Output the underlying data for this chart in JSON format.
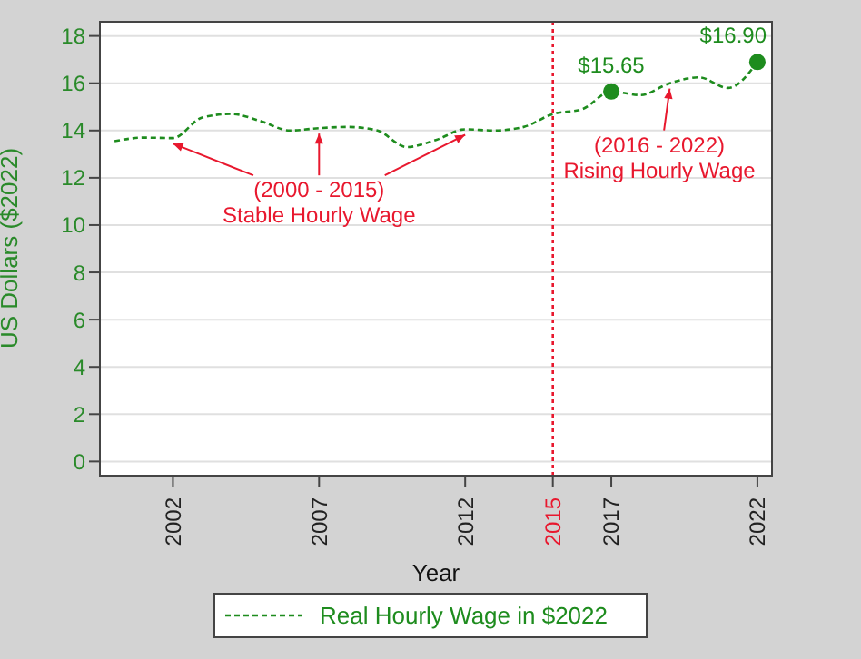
{
  "chart_data": {
    "type": "line",
    "xlabel": "Year",
    "ylabel": "US Dollars ($2022)",
    "xlim": [
      1999.5,
      2022.5
    ],
    "xticks": [
      2002,
      2007,
      2012,
      2015,
      2017,
      2022
    ],
    "ylim": [
      -0.6,
      18.6
    ],
    "yticks": [
      0,
      2,
      4,
      6,
      8,
      10,
      12,
      14,
      16,
      18
    ],
    "grid": "y",
    "legend": "bottom",
    "series": [
      {
        "name": "Real Hourly Wage in $2022",
        "type": "line",
        "color": "#1e8c1e",
        "line_style": "dashed",
        "marker": "none",
        "x": [
          2000,
          2001,
          2002,
          2003,
          2004,
          2005,
          2006,
          2007,
          2008,
          2009,
          2010,
          2011,
          2012,
          2013,
          2014,
          2015,
          2016,
          2017,
          2018,
          2019,
          2020,
          2021,
          2022
        ],
        "values": [
          13.55,
          13.7,
          13.68,
          14.55,
          14.7,
          14.4,
          14.0,
          14.1,
          14.15,
          14.0,
          13.3,
          13.6,
          14.05,
          14.0,
          14.15,
          14.7,
          14.9,
          15.65,
          15.5,
          16.0,
          16.25,
          15.8,
          16.9
        ]
      },
      {
        "type": "scatter",
        "color": "#1e8c1e",
        "marker": "circle",
        "x": [
          2017,
          2022
        ],
        "values": [
          15.65,
          16.9
        ],
        "value_labels": [
          "$15.65",
          "$16.90"
        ]
      }
    ],
    "ref_lines": [
      {
        "axis": "x",
        "value": 2015,
        "color": "#e8182e",
        "line_style": "dotted"
      }
    ],
    "annotations": [
      {
        "text": "(2000 - 2015)\nStable Hourly Wage",
        "x": 2007,
        "y": 14.1
      },
      {
        "text": "(2016 - 2022)\nRising Hourly Wage",
        "x": 2019,
        "y": 16.0
      }
    ]
  }
}
